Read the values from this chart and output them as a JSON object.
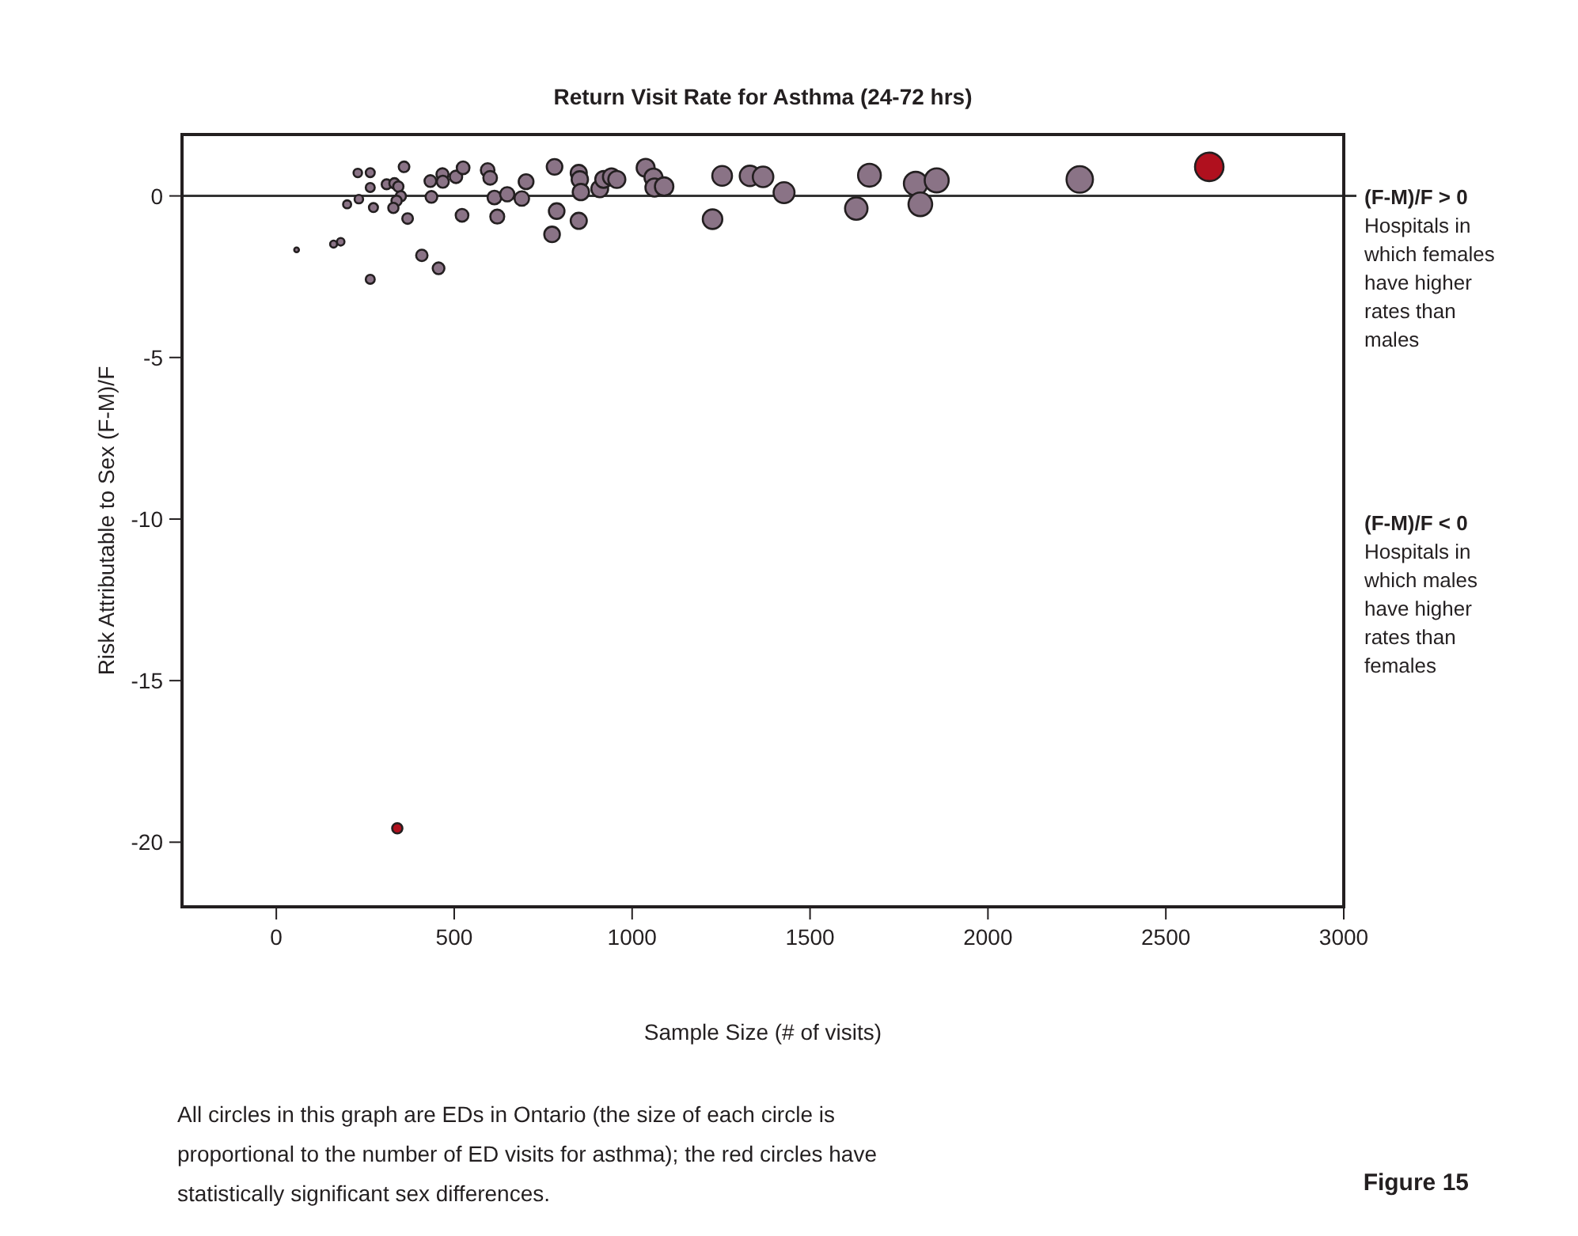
{
  "chart_data": {
    "type": "bubble",
    "title": "Return Visit Rate for Asthma (24-72 hrs)",
    "xlabel": "Sample Size (# of visits)",
    "ylabel": "Risk Attributable to Sex (F-M)/F",
    "xlim": [
      -265,
      3000
    ],
    "xticks": [
      0,
      500,
      1000,
      1500,
      2000,
      2500,
      3000
    ],
    "ylim": [
      -22,
      1.9
    ],
    "yticks": [
      0,
      -5,
      -10,
      -15,
      -20
    ],
    "grid": false,
    "ref_lines": [
      {
        "axis": "y",
        "value": 0,
        "color": "#333333"
      }
    ],
    "series": [
      {
        "color": "#8a7386",
        "x": [
          57,
          161,
          181,
          264,
          199,
          232,
          229,
          264,
          264,
          273,
          310,
          332,
          343,
          350,
          338,
          329,
          359,
          369,
          409,
          456,
          436,
          433,
          467,
          468,
          505,
          525,
          522,
          594,
          601,
          613,
          621,
          649,
          690,
          702,
          782,
          788,
          775,
          850,
          853,
          856,
          850,
          909,
          920,
          942,
          957,
          1038,
          1060,
          1063,
          1090,
          1226,
          1253,
          1331,
          1368,
          1427,
          1630,
          1667,
          1797,
          1856,
          1810,
          2258
        ],
        "values": [
          -1.67,
          -1.49,
          -1.42,
          -2.58,
          -0.26,
          -0.1,
          0.71,
          0.72,
          0.26,
          -0.36,
          0.36,
          0.39,
          0.29,
          -0.01,
          -0.15,
          -0.37,
          0.9,
          -0.7,
          -1.84,
          -2.24,
          -0.03,
          0.46,
          0.67,
          0.44,
          0.59,
          0.87,
          -0.6,
          0.8,
          0.56,
          -0.05,
          -0.64,
          0.05,
          -0.08,
          0.44,
          0.9,
          -0.47,
          -1.19,
          0.71,
          0.51,
          0.12,
          -0.77,
          0.22,
          0.51,
          0.59,
          0.51,
          0.87,
          0.57,
          0.26,
          0.29,
          -0.72,
          0.62,
          0.62,
          0.59,
          0.1,
          -0.39,
          0.64,
          0.38,
          0.48,
          -0.26,
          0.51
        ],
        "sizes": [
          0.02,
          0.06,
          0.07,
          0.1,
          0.08,
          0.09,
          0.09,
          0.1,
          0.1,
          0.1,
          0.12,
          0.13,
          0.13,
          0.13,
          0.13,
          0.13,
          0.14,
          0.14,
          0.16,
          0.17,
          0.17,
          0.17,
          0.18,
          0.18,
          0.19,
          0.2,
          0.2,
          0.23,
          0.23,
          0.23,
          0.24,
          0.25,
          0.26,
          0.27,
          0.3,
          0.3,
          0.3,
          0.32,
          0.33,
          0.33,
          0.32,
          0.35,
          0.35,
          0.36,
          0.36,
          0.4,
          0.4,
          0.41,
          0.42,
          0.47,
          0.48,
          0.51,
          0.52,
          0.54,
          0.62,
          0.64,
          0.69,
          0.71,
          0.69,
          0.86
        ]
      },
      {
        "color": "#b0101e",
        "x": [
          2622,
          340
        ],
        "values": [
          0.9,
          -19.57
        ],
        "sizes": [
          1,
          0.13
        ]
      }
    ],
    "annotations": [
      "(F-M)/F > 0",
      "Hospitals in which females have higher rates than males",
      "(F-M)/F < 0",
      "Hospitals in which males have higher rates than females",
      "All circles in this graph are EDs in Ontario (the size of each circle is proportional to the number of ED visits for asthma); the red circles have statistically significant sex differences.",
      "Figure 15"
    ]
  }
}
